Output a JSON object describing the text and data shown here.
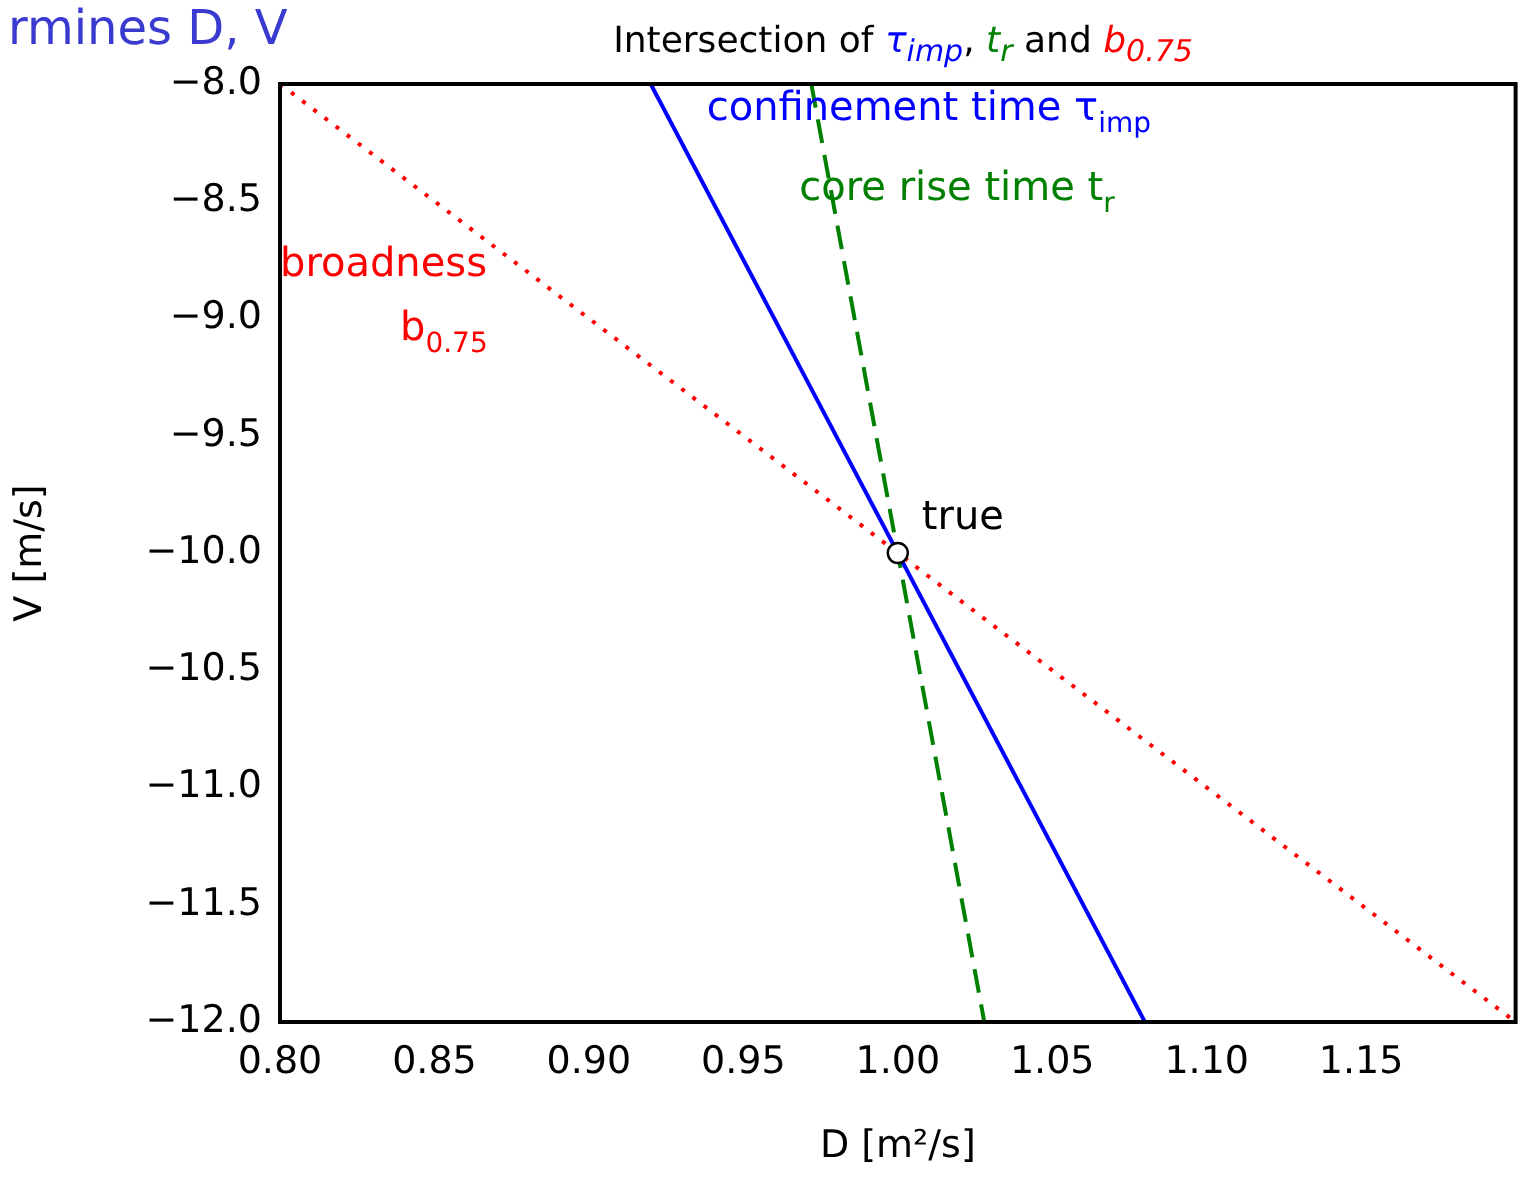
{
  "chart_data": {
    "type": "line",
    "title": "Intersection of τ$_{imp}$, t$_{r}$ and b$_{0.75}$",
    "xlabel": "D [m²/s]",
    "ylabel": "V [m/s]",
    "annotations": [
      "rmines D, V"
    ],
    "xlim": [
      0.8,
      1.2
    ],
    "ylim": [
      -12,
      -8
    ],
    "xticks": [
      {
        "value": 0.8,
        "label": "0.80"
      },
      {
        "value": 0.85,
        "label": "0.85"
      },
      {
        "value": 0.9,
        "label": "0.90"
      },
      {
        "value": 0.95,
        "label": "0.95"
      },
      {
        "value": 1,
        "label": "1.00"
      },
      {
        "value": 1.05,
        "label": "1.05"
      },
      {
        "value": 1.1,
        "label": "1.10"
      },
      {
        "value": 1.15,
        "label": "1.15"
      }
    ],
    "yticks": [
      {
        "value": -12,
        "label": "−12.0"
      },
      {
        "value": -11.5,
        "label": "−11.5"
      },
      {
        "value": -11,
        "label": "−11.0"
      },
      {
        "value": -10.5,
        "label": "−10.5"
      },
      {
        "value": -10,
        "label": "−10.0"
      },
      {
        "value": -9.5,
        "label": "−9.5"
      },
      {
        "value": -9,
        "label": "−9.0"
      },
      {
        "value": -8.5,
        "label": "−8.5"
      },
      {
        "value": -8,
        "label": "−8.0"
      }
    ],
    "grid": false,
    "legend": false,
    "series": [
      {
        "name": "confinement time τ$_{imp}$",
        "color": "#0000ff",
        "x": [
          0.92,
          1.08
        ],
        "values": [
          -8,
          -12
        ],
        "line_style": "solid",
        "marker": "none"
      },
      {
        "name": "core rise time t$_{r}$",
        "color": "#008000",
        "x": [
          0.972,
          1.028
        ],
        "values": [
          -8,
          -12
        ],
        "line_style": "dashed",
        "marker": "none"
      },
      {
        "name": "broadness b$_{0.75}$",
        "color": "#ff0000",
        "x": [
          0.8,
          1.2
        ],
        "values": [
          -8,
          -12
        ],
        "line_style": "dotted",
        "marker": "none"
      },
      {
        "name": "true",
        "type": "scatter",
        "color": "#ffffff",
        "x": [
          1
        ],
        "values": [
          -10
        ],
        "marker": "circle"
      }
    ]
  }
}
